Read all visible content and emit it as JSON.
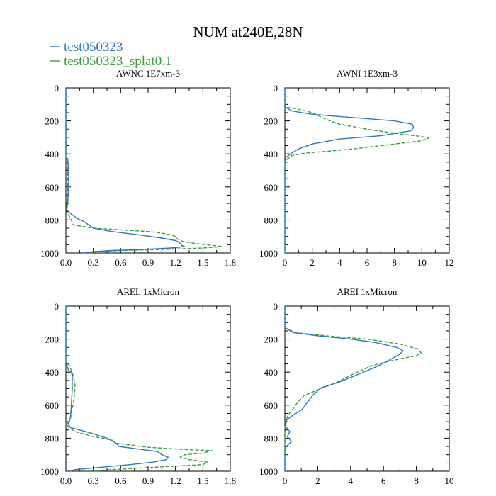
{
  "figure": {
    "title": "NUM at240E,28N",
    "legend": [
      {
        "label": "test050323",
        "color": "#2b7bba",
        "dash": "solid"
      },
      {
        "label": "test050323_splat0.1",
        "color": "#3aa13a",
        "dash": "dashed"
      }
    ]
  },
  "chart_data": [
    {
      "type": "line",
      "title": "AWNC  1E7xm-3",
      "xlim": [
        0,
        1.8
      ],
      "ylim": [
        1000,
        0
      ],
      "xticks": [
        0.0,
        0.3,
        0.6,
        0.9,
        1.2,
        1.5,
        1.8
      ],
      "xtick_labels": [
        "0.0",
        "0.3",
        "0.6",
        "0.9",
        "1.2",
        "1.5",
        "1.8"
      ],
      "yticks": [
        0,
        200,
        400,
        600,
        800,
        1000
      ],
      "series": [
        {
          "name": "test050323",
          "points": [
            [
              0,
              0
            ],
            [
              0,
              420
            ],
            [
              0.02,
              430
            ],
            [
              0.03,
              500
            ],
            [
              0.03,
              600
            ],
            [
              0.02,
              700
            ],
            [
              0.01,
              740
            ],
            [
              0.05,
              760
            ],
            [
              0.12,
              790
            ],
            [
              0.2,
              810
            ],
            [
              0.25,
              830
            ],
            [
              0.3,
              850
            ],
            [
              0.5,
              870
            ],
            [
              0.8,
              890
            ],
            [
              1.05,
              910
            ],
            [
              1.2,
              925
            ],
            [
              1.24,
              935
            ],
            [
              1.27,
              955
            ],
            [
              1.3,
              962
            ],
            [
              1.15,
              970
            ],
            [
              0.8,
              980
            ],
            [
              0.5,
              985
            ],
            [
              0.3,
              992
            ],
            [
              0.19,
              1000
            ]
          ]
        },
        {
          "name": "test050323_splat0.1",
          "points": [
            [
              0,
              0
            ],
            [
              0,
              420
            ],
            [
              0.02,
              430
            ],
            [
              0.02,
              600
            ],
            [
              0.01,
              700
            ],
            [
              0.01,
              750
            ],
            [
              0.06,
              800
            ],
            [
              0.08,
              830
            ],
            [
              0.3,
              850
            ],
            [
              0.6,
              860
            ],
            [
              0.9,
              870
            ],
            [
              1.05,
              880
            ],
            [
              1.15,
              890
            ],
            [
              1.2,
              900
            ],
            [
              1.22,
              915
            ],
            [
              1.28,
              930
            ],
            [
              1.45,
              945
            ],
            [
              1.62,
              955
            ],
            [
              1.72,
              962
            ],
            [
              1.5,
              970
            ],
            [
              1.1,
              978
            ],
            [
              0.6,
              985
            ],
            [
              0.35,
              992
            ],
            [
              0.25,
              1000
            ]
          ]
        }
      ]
    },
    {
      "type": "line",
      "title": "AWNI  1E3xm-3",
      "xlim": [
        0,
        12
      ],
      "ylim": [
        1000,
        0
      ],
      "xticks": [
        0,
        2,
        4,
        6,
        8,
        10,
        12
      ],
      "xtick_labels": [
        "0",
        "2",
        "4",
        "6",
        "8",
        "10",
        "12"
      ],
      "yticks": [
        0,
        200,
        400,
        600,
        800,
        1000
      ],
      "series": [
        {
          "name": "test050323",
          "points": [
            [
              0,
              0
            ],
            [
              0,
              115
            ],
            [
              0.5,
              140
            ],
            [
              2,
              160
            ],
            [
              5,
              180
            ],
            [
              8,
              200
            ],
            [
              9.3,
              220
            ],
            [
              9.4,
              240
            ],
            [
              9.2,
              260
            ],
            [
              7,
              290
            ],
            [
              4,
              310
            ],
            [
              2,
              340
            ],
            [
              1,
              370
            ],
            [
              0.5,
              395
            ],
            [
              0.1,
              420
            ],
            [
              0,
              450
            ],
            [
              0,
              1000
            ]
          ]
        },
        {
          "name": "test050323_splat0.1",
          "points": [
            [
              0,
              0
            ],
            [
              0,
              115
            ],
            [
              1,
              130
            ],
            [
              2,
              150
            ],
            [
              3,
              190
            ],
            [
              4,
              220
            ],
            [
              6,
              250
            ],
            [
              8,
              275
            ],
            [
              10,
              295
            ],
            [
              10.5,
              305
            ],
            [
              10,
              320
            ],
            [
              7,
              350
            ],
            [
              5,
              370
            ],
            [
              3,
              385
            ],
            [
              1.5,
              395
            ],
            [
              0.5,
              410
            ],
            [
              0.2,
              430
            ],
            [
              0,
              460
            ],
            [
              0,
              1000
            ]
          ]
        }
      ]
    },
    {
      "type": "line",
      "title": "AREL  1xMicron",
      "xlim": [
        0,
        1.8
      ],
      "ylim": [
        1000,
        0
      ],
      "xticks": [
        0.0,
        0.3,
        0.6,
        0.9,
        1.2,
        1.5,
        1.8
      ],
      "xtick_labels": [
        "0.0",
        "0.3",
        "0.6",
        "0.9",
        "1.2",
        "1.5",
        "1.8"
      ],
      "yticks": [
        0,
        200,
        400,
        600,
        800,
        1000
      ],
      "series": [
        {
          "name": "test050323",
          "points": [
            [
              0,
              0
            ],
            [
              0,
              340
            ],
            [
              0.03,
              390
            ],
            [
              0.06,
              400
            ],
            [
              0.07,
              420
            ],
            [
              0.07,
              500
            ],
            [
              0.06,
              600
            ],
            [
              0.05,
              680
            ],
            [
              0.02,
              710
            ],
            [
              0.05,
              735
            ],
            [
              0.25,
              765
            ],
            [
              0.45,
              800
            ],
            [
              0.55,
              830
            ],
            [
              0.58,
              850
            ],
            [
              0.85,
              870
            ],
            [
              1.0,
              880
            ],
            [
              1.05,
              900
            ],
            [
              1.12,
              915
            ],
            [
              1.1,
              930
            ],
            [
              0.95,
              945
            ],
            [
              0.7,
              960
            ],
            [
              0.4,
              975
            ],
            [
              0.1,
              990
            ],
            [
              0.05,
              1000
            ]
          ]
        },
        {
          "name": "test050323_splat0.1",
          "points": [
            [
              0,
              0
            ],
            [
              0,
              340
            ],
            [
              0.04,
              360
            ],
            [
              0.08,
              420
            ],
            [
              0.1,
              480
            ],
            [
              0.09,
              560
            ],
            [
              0.07,
              620
            ],
            [
              0.05,
              680
            ],
            [
              0.03,
              710
            ],
            [
              0.02,
              730
            ],
            [
              0.1,
              760
            ],
            [
              0.3,
              790
            ],
            [
              0.5,
              810
            ],
            [
              0.55,
              830
            ],
            [
              0.9,
              855
            ],
            [
              1.35,
              870
            ],
            [
              1.6,
              875
            ],
            [
              1.5,
              890
            ],
            [
              1.3,
              900
            ],
            [
              1.25,
              915
            ],
            [
              1.35,
              930
            ],
            [
              1.55,
              945
            ],
            [
              1.5,
              960
            ],
            [
              1.0,
              975
            ],
            [
              0.5,
              990
            ],
            [
              0.3,
              1000
            ]
          ]
        }
      ]
    },
    {
      "type": "line",
      "title": "AREI  1xMicron",
      "xlim": [
        0,
        10
      ],
      "ylim": [
        1000,
        0
      ],
      "xticks": [
        0,
        2,
        4,
        6,
        8,
        10
      ],
      "xtick_labels": [
        "0",
        "2",
        "4",
        "6",
        "8",
        "10"
      ],
      "yticks": [
        0,
        200,
        400,
        600,
        800,
        1000
      ],
      "series": [
        {
          "name": "test050323",
          "points": [
            [
              0,
              0
            ],
            [
              0,
              130
            ],
            [
              0.5,
              160
            ],
            [
              2,
              180
            ],
            [
              4,
              200
            ],
            [
              5.5,
              220
            ],
            [
              6.8,
              250
            ],
            [
              7.2,
              270
            ],
            [
              7,
              290
            ],
            [
              6.3,
              330
            ],
            [
              5.5,
              370
            ],
            [
              4.3,
              420
            ],
            [
              3.3,
              460
            ],
            [
              2.2,
              495
            ],
            [
              1.7,
              540
            ],
            [
              1.4,
              580
            ],
            [
              1.0,
              630
            ],
            [
              0.5,
              660
            ],
            [
              0.1,
              690
            ],
            [
              0.05,
              730
            ],
            [
              0.3,
              760
            ],
            [
              0.15,
              790
            ],
            [
              0.4,
              820
            ],
            [
              0.1,
              850
            ],
            [
              0,
              880
            ],
            [
              0,
              1000
            ]
          ]
        },
        {
          "name": "test050323_splat0.1",
          "points": [
            [
              0,
              0
            ],
            [
              0,
              130
            ],
            [
              0.6,
              160
            ],
            [
              2.5,
              180
            ],
            [
              5,
              200
            ],
            [
              7,
              230
            ],
            [
              8.1,
              260
            ],
            [
              8.3,
              285
            ],
            [
              8,
              300
            ],
            [
              6.5,
              330
            ],
            [
              5.3,
              360
            ],
            [
              4.2,
              410
            ],
            [
              3.2,
              460
            ],
            [
              2.2,
              500
            ],
            [
              1.2,
              540
            ],
            [
              0.8,
              580
            ],
            [
              0.5,
              620
            ],
            [
              0.2,
              660
            ],
            [
              0.1,
              690
            ],
            [
              0,
              740
            ],
            [
              0,
              1000
            ]
          ]
        }
      ]
    }
  ]
}
